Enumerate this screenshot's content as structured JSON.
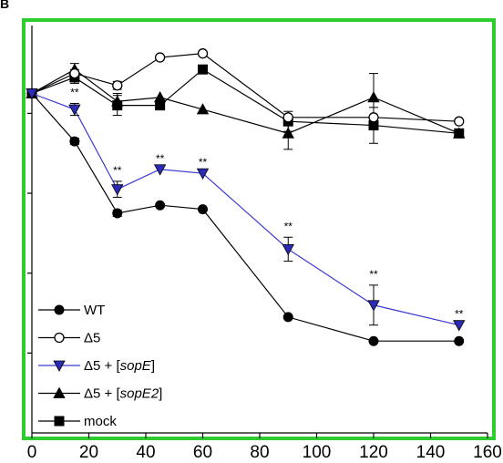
{
  "panel_letter": "B",
  "chart_data": {
    "type": "line",
    "title": "",
    "xlabel": "",
    "ylabel": "",
    "xlim": [
      0,
      160
    ],
    "ylim": [
      0,
      1.02
    ],
    "x_ticks": [
      0,
      20,
      40,
      60,
      80,
      100,
      120,
      140,
      160
    ],
    "y_ticks": [
      0.2,
      0.4,
      0.6,
      0.8
    ],
    "y_tick_labels_visible": false,
    "grid": false,
    "legend_position": "bottom-left",
    "frame_color": "#2ecc2e",
    "series": [
      {
        "name": "WT",
        "marker": "circle-filled",
        "color": "#000000",
        "x": [
          0,
          15,
          30,
          45,
          60,
          90,
          120,
          150
        ],
        "y": [
          0.85,
          0.73,
          0.55,
          0.57,
          0.56,
          0.29,
          0.23,
          0.23
        ],
        "err": [
          0,
          0.008,
          0.008,
          0,
          0,
          0,
          0,
          0
        ]
      },
      {
        "name": "Δ5",
        "marker": "circle-open",
        "color": "#000000",
        "x": [
          0,
          15,
          30,
          45,
          60,
          90,
          120,
          150
        ],
        "y": [
          0.85,
          0.9,
          0.87,
          0.94,
          0.95,
          0.79,
          0.79,
          0.78
        ],
        "err": [
          0,
          0.01,
          0.01,
          0,
          0,
          0,
          0,
          0
        ]
      },
      {
        "name": "Δ5 + [sopE]",
        "name_plain": "Δ5 + [",
        "name_italic": "sopE",
        "name_suffix": "]",
        "marker": "triangle-down",
        "color": "#2b2bb5",
        "x": [
          0,
          15,
          30,
          45,
          60,
          90,
          120,
          150
        ],
        "y": [
          0.85,
          0.81,
          0.61,
          0.66,
          0.65,
          0.46,
          0.32,
          0.27
        ],
        "err": [
          0,
          0.015,
          0.02,
          0,
          0,
          0.03,
          0.05,
          0
        ],
        "significance": [
          "",
          "**",
          "**",
          "**",
          "**",
          "**",
          "**",
          "**"
        ]
      },
      {
        "name": "Δ5 + [sopE2]",
        "name_plain": "Δ5 + [",
        "name_italic": "sopE2",
        "name_suffix": "]",
        "marker": "triangle-up",
        "color": "#000000",
        "x": [
          0,
          15,
          30,
          45,
          60,
          90,
          120,
          150
        ],
        "y": [
          0.85,
          0.91,
          0.83,
          0.84,
          0.81,
          0.75,
          0.84,
          0.75
        ],
        "err": [
          0,
          0.015,
          0.02,
          0,
          0,
          0.04,
          0.06,
          0
        ]
      },
      {
        "name": "mock",
        "marker": "square",
        "color": "#000000",
        "x": [
          0,
          15,
          30,
          45,
          60,
          90,
          120,
          150
        ],
        "y": [
          0.85,
          0.89,
          0.82,
          0.82,
          0.91,
          0.78,
          0.77,
          0.75
        ],
        "err": [
          0,
          0.015,
          0.025,
          0,
          0,
          0.025,
          0.045,
          0
        ]
      }
    ]
  }
}
